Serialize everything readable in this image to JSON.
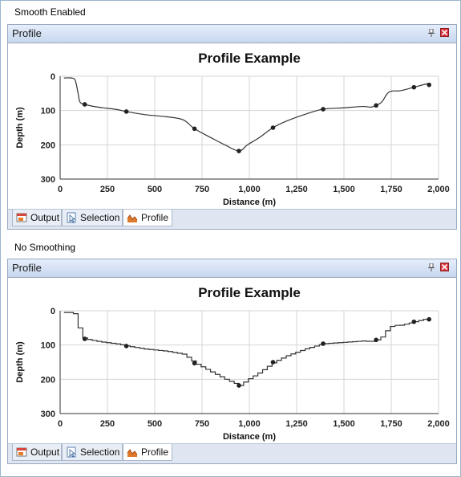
{
  "panels": [
    {
      "section_label": "Smooth Enabled",
      "window_title": "Profile",
      "smoothing": true,
      "tabs": [
        {
          "label": "Output",
          "icon": "output-icon",
          "active": false
        },
        {
          "label": "Selection",
          "icon": "selection-icon",
          "active": false
        },
        {
          "label": "Profile",
          "icon": "profile-icon",
          "active": true
        }
      ],
      "chart_data": {
        "type": "line",
        "title": "Profile Example",
        "xlabel": "Distance (m)",
        "ylabel": "Depth (m)",
        "xlim": [
          0,
          2000
        ],
        "ylim": [
          0,
          300
        ],
        "y_inverted": true,
        "grid": true,
        "x_ticks": [
          "0",
          "250",
          "500",
          "750",
          "1,000",
          "1,250",
          "1,500",
          "1,750",
          "2,000"
        ],
        "y_ticks": [
          "0",
          "100",
          "200",
          "300"
        ],
        "line": {
          "x": [
            20,
            60,
            80,
            95,
            105,
            130,
            200,
            300,
            350,
            450,
            560,
            650,
            710,
            800,
            870,
            945,
            990,
            1050,
            1125,
            1200,
            1300,
            1390,
            1500,
            1600,
            1640,
            1670,
            1700,
            1730,
            1755,
            1800,
            1870,
            1940,
            1960
          ],
          "y": [
            5,
            5,
            12,
            50,
            75,
            82,
            90,
            97,
            103,
            112,
            118,
            127,
            153,
            180,
            200,
            218,
            200,
            180,
            150,
            130,
            110,
            96,
            92,
            88,
            90,
            85,
            75,
            50,
            43,
            42,
            32,
            22,
            25
          ]
        },
        "points": {
          "x": [
            130,
            350,
            710,
            945,
            1125,
            1390,
            1670,
            1870,
            1950
          ],
          "y": [
            82,
            103,
            153,
            218,
            150,
            96,
            85,
            32,
            25
          ]
        }
      }
    },
    {
      "section_label": "No Smoothing",
      "window_title": "Profile",
      "smoothing": false,
      "tabs": [
        {
          "label": "Output",
          "icon": "output-icon",
          "active": false
        },
        {
          "label": "Selection",
          "icon": "selection-icon",
          "active": false
        },
        {
          "label": "Profile",
          "icon": "profile-icon",
          "active": true
        }
      ],
      "chart_data": {
        "type": "line",
        "title": "Profile Example",
        "xlabel": "Distance (m)",
        "ylabel": "Depth (m)",
        "xlim": [
          0,
          2000
        ],
        "ylim": [
          0,
          300
        ],
        "y_inverted": true,
        "grid": true,
        "x_ticks": [
          "0",
          "250",
          "500",
          "750",
          "1,000",
          "1,250",
          "1,500",
          "1,750",
          "2,000"
        ],
        "y_ticks": [
          "0",
          "100",
          "200",
          "300"
        ],
        "line": {
          "x": [
            20,
            60,
            80,
            95,
            105,
            130,
            200,
            300,
            350,
            450,
            560,
            650,
            710,
            800,
            870,
            945,
            990,
            1050,
            1125,
            1200,
            1300,
            1390,
            1500,
            1600,
            1640,
            1670,
            1700,
            1730,
            1755,
            1800,
            1870,
            1940,
            1960
          ],
          "y": [
            5,
            5,
            12,
            50,
            75,
            82,
            90,
            97,
            103,
            112,
            118,
            127,
            153,
            180,
            200,
            218,
            200,
            180,
            150,
            130,
            110,
            96,
            92,
            88,
            90,
            85,
            75,
            50,
            43,
            42,
            32,
            22,
            25
          ]
        },
        "points": {
          "x": [
            130,
            350,
            710,
            945,
            1125,
            1390,
            1670,
            1870,
            1950
          ],
          "y": [
            82,
            103,
            153,
            218,
            150,
            96,
            85,
            32,
            25
          ]
        }
      }
    }
  ]
}
